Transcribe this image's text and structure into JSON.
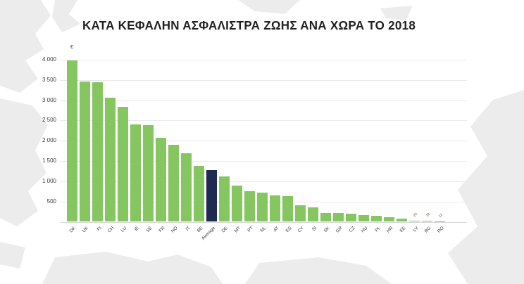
{
  "page": {
    "background_color": "#ffffff",
    "map_color": "#ececec"
  },
  "chart_data": {
    "type": "bar",
    "title": "ΚΑΤΑ ΚΕΦΑΛΗΝ ΑΣΦΑΛΙΣΤΡΑ ΖΩΗΣ ΑΝΑ ΧΩΡΑ ΤΟ 2018",
    "ylabel": "€",
    "xlabel": "",
    "ylim": [
      0,
      4200
    ],
    "grid": true,
    "legend": "none",
    "ytick_values": [
      500,
      1000,
      1500,
      2000,
      2500,
      3000,
      3500,
      4000
    ],
    "ytick_labels": [
      "500",
      "1 000",
      "1 500",
      "2 000",
      "2 500",
      "3 000",
      "3 500",
      "4 000"
    ],
    "categories": [
      "DK",
      "UK",
      "FI",
      "CH",
      "LU",
      "IE",
      "SE",
      "FR",
      "NO",
      "IT",
      "BE",
      "Average",
      "DE",
      "MT",
      "PT",
      "NL",
      "AT",
      "ES",
      "CY",
      "SI",
      "SK",
      "GR",
      "CZ",
      "HU",
      "PL",
      "HR",
      "EE",
      "LV",
      "BG",
      "RO"
    ],
    "values": [
      3990,
      3460,
      3440,
      3070,
      2830,
      2400,
      2380,
      2070,
      1900,
      1700,
      1380,
      1280,
      1120,
      900,
      760,
      720,
      655,
      640,
      410,
      360,
      220,
      210,
      205,
      170,
      140,
      105,
      70,
      25,
      19,
      12
    ],
    "highlight_category": "Average",
    "bar_colors": {
      "default": "#85C661",
      "highlight": "#1E2A52"
    },
    "annotations": [
      {
        "category": "LV",
        "text": "25"
      },
      {
        "category": "BG",
        "text": "19"
      },
      {
        "category": "RO",
        "text": "12"
      }
    ]
  }
}
